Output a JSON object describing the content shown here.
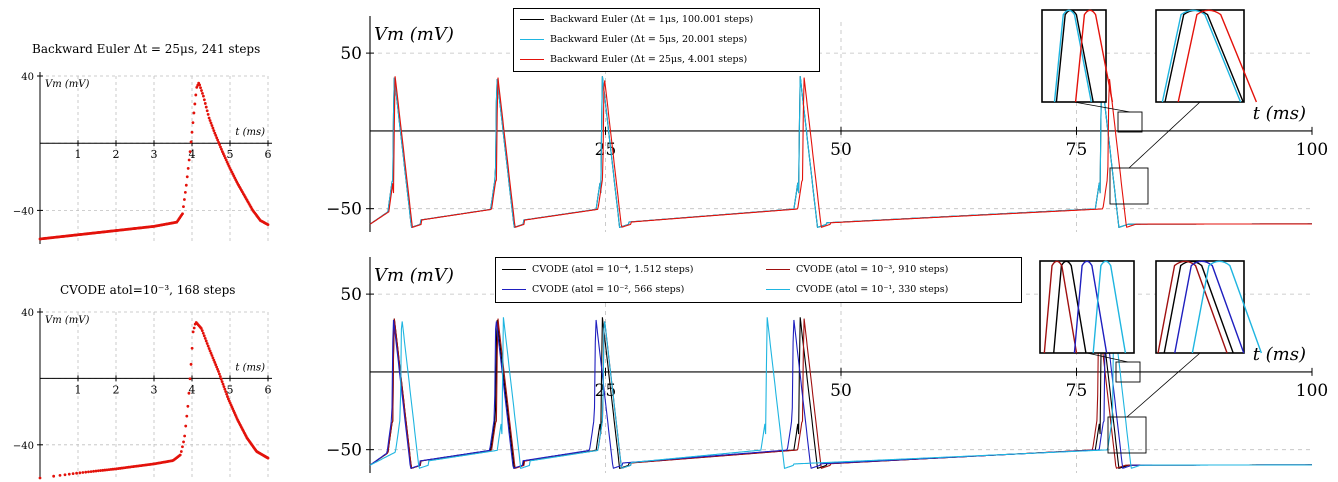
{
  "colors": {
    "black": "#000000",
    "cyan": "#1fb5e0",
    "red": "#e3120b",
    "darkred": "#a01010",
    "blue": "#1f1fbf",
    "grid": "#bfbfbf"
  },
  "chart_data": [
    {
      "id": "small-top",
      "type": "scatter",
      "title": "Backward Euler Δt = 25μs, 241 steps",
      "xlabel": "t (ms)",
      "ylabel": "V_m (mV)",
      "xlim": [
        0,
        6
      ],
      "ylim": [
        -60,
        40
      ],
      "xticks": [
        "1",
        "2",
        "3",
        "4",
        "5",
        "6"
      ],
      "yticks": [
        "40",
        "−40"
      ],
      "grid": true,
      "series": [
        {
          "color": "#e3120b",
          "points": 241,
          "knots": [
            [
              0,
              -57
            ],
            [
              1,
              -54.5
            ],
            [
              2,
              -52
            ],
            [
              3,
              -49.5
            ],
            [
              3.6,
              -47
            ],
            [
              3.75,
              -42
            ],
            [
              3.85,
              -25
            ],
            [
              3.95,
              -5
            ],
            [
              4.05,
              18
            ],
            [
              4.12,
              33
            ],
            [
              4.18,
              36
            ],
            [
              4.3,
              28
            ],
            [
              4.45,
              15
            ],
            [
              4.6,
              6
            ],
            [
              4.8,
              -5
            ],
            [
              5.0,
              -15
            ],
            [
              5.2,
              -24
            ],
            [
              5.4,
              -32
            ],
            [
              5.6,
              -40
            ],
            [
              5.8,
              -46
            ],
            [
              6,
              -48.5
            ]
          ]
        }
      ]
    },
    {
      "id": "small-bottom",
      "type": "scatter",
      "title": "CVODE atol=10⁻³, 168 steps",
      "xlabel": "t (ms)",
      "ylabel": "V_m (mV)",
      "xlim": [
        0,
        6
      ],
      "ylim": [
        -60,
        40
      ],
      "xticks": [
        "1",
        "2",
        "3",
        "4",
        "5",
        "6"
      ],
      "yticks": [
        "40",
        "−40"
      ],
      "grid": true,
      "series": [
        {
          "color": "#e3120b",
          "points": 168,
          "knots": [
            [
              0,
              -60
            ],
            [
              1,
              -57
            ],
            [
              2,
              -54.5
            ],
            [
              3,
              -51.5
            ],
            [
              3.5,
              -49.5
            ],
            [
              3.7,
              -46
            ],
            [
              3.8,
              -36
            ],
            [
              3.9,
              -15
            ],
            [
              3.98,
              10
            ],
            [
              4.03,
              28
            ],
            [
              4.1,
              34
            ],
            [
              4.25,
              30
            ],
            [
              4.45,
              18
            ],
            [
              4.7,
              4
            ],
            [
              4.95,
              -12
            ],
            [
              5.2,
              -25
            ],
            [
              5.45,
              -36
            ],
            [
              5.7,
              -44
            ],
            [
              6,
              -48
            ]
          ]
        }
      ]
    },
    {
      "id": "main-top",
      "type": "line",
      "ylabel": "V_m (mV)",
      "xlabel": "t (ms)",
      "xlim": [
        0,
        100
      ],
      "ylim": [
        -65,
        70
      ],
      "xticks": [
        "25",
        "50",
        "75",
        "100"
      ],
      "yticks": [
        "50",
        "−50"
      ],
      "grid": true,
      "series": [
        {
          "name": "Backward Euler (Δt = 1μs, 100.001 steps)",
          "color": "#000000",
          "spikes": [
            2.4,
            13.3,
            24.5,
            45.5,
            77.5
          ]
        },
        {
          "name": "Backward Euler (Δt = 5μs, 20.001 steps)",
          "color": "#1fb5e0",
          "spikes": [
            2.4,
            13.3,
            24.5,
            45.5,
            77.5
          ]
        },
        {
          "name": "Backward Euler (Δt = 25μs, 4.001 steps)",
          "color": "#e3120b",
          "spikes": [
            2.5,
            13.4,
            24.7,
            45.9,
            78.3
          ]
        }
      ],
      "insets": 2
    },
    {
      "id": "main-bottom",
      "type": "line",
      "ylabel": "V_m (mV)",
      "xlabel": "t (ms)",
      "xlim": [
        0,
        100
      ],
      "ylim": [
        -65,
        70
      ],
      "xticks": [
        "25",
        "50",
        "75",
        "100"
      ],
      "yticks": [
        "50",
        "−50"
      ],
      "grid": true,
      "series": [
        {
          "name": "CVODE (atol = 10⁻⁴, 1.512 steps)",
          "color": "#000000",
          "spikes": [
            2.4,
            13.3,
            24.5,
            45.5,
            77.5
          ]
        },
        {
          "name": "CVODE (atol = 10⁻³, 910 steps)",
          "color": "#a01010",
          "spikes": [
            2.4,
            13.4,
            24.7,
            45.9,
            77.2
          ]
        },
        {
          "name": "CVODE (atol = 10⁻², 566 steps)",
          "color": "#1f1fbf",
          "spikes": [
            2.3,
            13.2,
            23.8,
            44.8,
            77.9
          ]
        },
        {
          "name": "CVODE (atol = 10⁻¹, 330 steps)",
          "color": "#1fb5e0",
          "spikes": [
            3.2,
            14.0,
            24.7,
            42.0,
            78.8
          ]
        }
      ],
      "insets": 2
    }
  ]
}
